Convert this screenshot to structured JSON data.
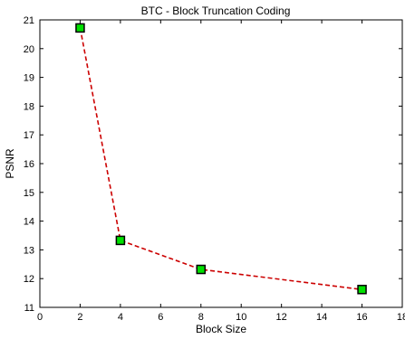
{
  "chart_data": {
    "type": "line",
    "title": "BTC - Block Truncation Coding",
    "xlabel": "Block Size",
    "ylabel": "PSNR",
    "xlim": [
      0,
      18
    ],
    "ylim": [
      11,
      21
    ],
    "xticks": [
      0,
      2,
      4,
      6,
      8,
      10,
      12,
      14,
      16,
      18
    ],
    "yticks": [
      11,
      12,
      13,
      14,
      15,
      16,
      17,
      18,
      19,
      20,
      21
    ],
    "grid": false,
    "series": [
      {
        "x": [
          2,
          4,
          8,
          16
        ],
        "y": [
          20.72,
          13.33,
          12.32,
          11.62
        ],
        "line_color": "#cc0000",
        "line_style": "dashed",
        "marker": "square",
        "marker_face": "#00e000",
        "marker_edge": "#000000"
      }
    ]
  }
}
